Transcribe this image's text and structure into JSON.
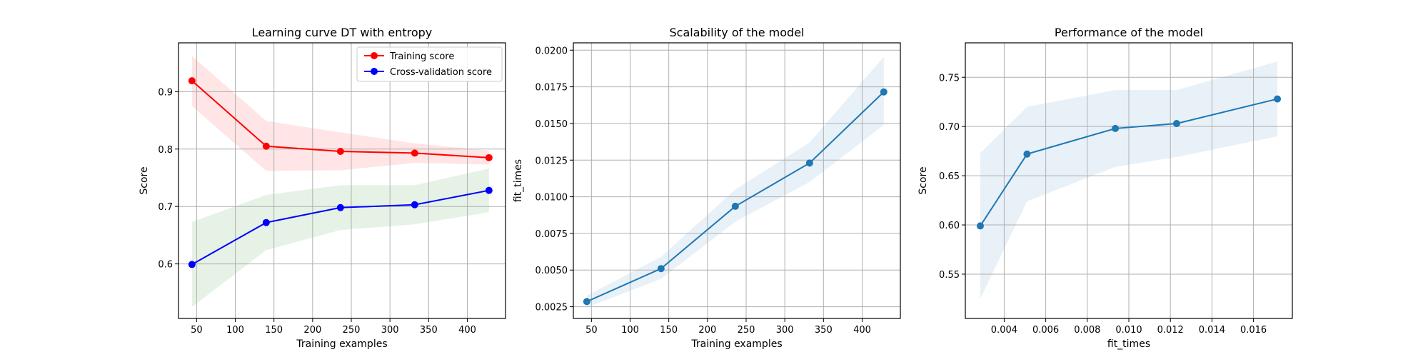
{
  "chart_data": [
    {
      "type": "line",
      "title": "Learning curve DT with entropy",
      "xlabel": "Training examples",
      "ylabel": "Score",
      "xlim": [
        26.6,
        449.4
      ],
      "ylim": [
        0.505,
        0.985
      ],
      "xticks": [
        50,
        100,
        150,
        200,
        250,
        300,
        350,
        400
      ],
      "yticks": [
        0.6,
        0.7,
        0.8,
        0.9
      ],
      "grid": true,
      "legend": "top-right",
      "x": [
        44,
        140,
        236,
        332,
        428
      ],
      "series": [
        {
          "name": "Training score",
          "color": "#ff0000",
          "band_color": "#ff0000",
          "values": [
            0.919,
            0.805,
            0.796,
            0.793,
            0.785
          ],
          "lower": [
            0.875,
            0.762,
            0.763,
            0.776,
            0.773
          ],
          "upper": [
            0.962,
            0.849,
            0.829,
            0.81,
            0.797
          ]
        },
        {
          "name": "Cross-validation score",
          "color": "#0000ff",
          "band_color": "#008000",
          "values": [
            0.599,
            0.672,
            0.698,
            0.703,
            0.728
          ],
          "lower": [
            0.525,
            0.624,
            0.659,
            0.669,
            0.69
          ],
          "upper": [
            0.673,
            0.72,
            0.737,
            0.737,
            0.766
          ]
        }
      ]
    },
    {
      "type": "line",
      "title": "Scalability of the model",
      "xlabel": "Training examples",
      "ylabel": "fit_times",
      "xlim": [
        26.6,
        449.4
      ],
      "ylim": [
        0.0017,
        0.0205
      ],
      "xticks": [
        50,
        100,
        150,
        200,
        250,
        300,
        350,
        400
      ],
      "yticks": [
        "0.0025",
        "0.0050",
        "0.0075",
        "0.0100",
        "0.0125",
        "0.0150",
        "0.0175",
        "0.0200"
      ],
      "grid": true,
      "x": [
        44,
        140,
        236,
        332,
        428
      ],
      "series": [
        {
          "color": "#1f77b4",
          "band_color": "#1f77b4",
          "values": [
            0.00285,
            0.0051,
            0.00935,
            0.0123,
            0.01715
          ],
          "lower": [
            0.00245,
            0.0044,
            0.0083,
            0.011,
            0.0149
          ],
          "upper": [
            0.00325,
            0.0059,
            0.0105,
            0.0137,
            0.01955
          ]
        }
      ]
    },
    {
      "type": "line",
      "title": "Performance of the model",
      "xlabel": "fit_times",
      "ylabel": "Score",
      "xlim": [
        0.00213,
        0.01787
      ],
      "ylim": [
        0.505,
        0.785
      ],
      "xticks": [
        "0.004",
        "0.006",
        "0.008",
        "0.010",
        "0.012",
        "0.014",
        "0.016"
      ],
      "yticks": [
        "0.55",
        "0.60",
        "0.65",
        "0.70",
        "0.75"
      ],
      "grid": true,
      "x": [
        0.00285,
        0.0051,
        0.00935,
        0.0123,
        0.01715
      ],
      "series": [
        {
          "color": "#1f77b4",
          "band_color": "#1f77b4",
          "values": [
            0.599,
            0.672,
            0.698,
            0.703,
            0.728
          ],
          "lower": [
            0.525,
            0.624,
            0.659,
            0.669,
            0.69
          ],
          "upper": [
            0.673,
            0.72,
            0.737,
            0.737,
            0.766
          ]
        }
      ]
    }
  ]
}
